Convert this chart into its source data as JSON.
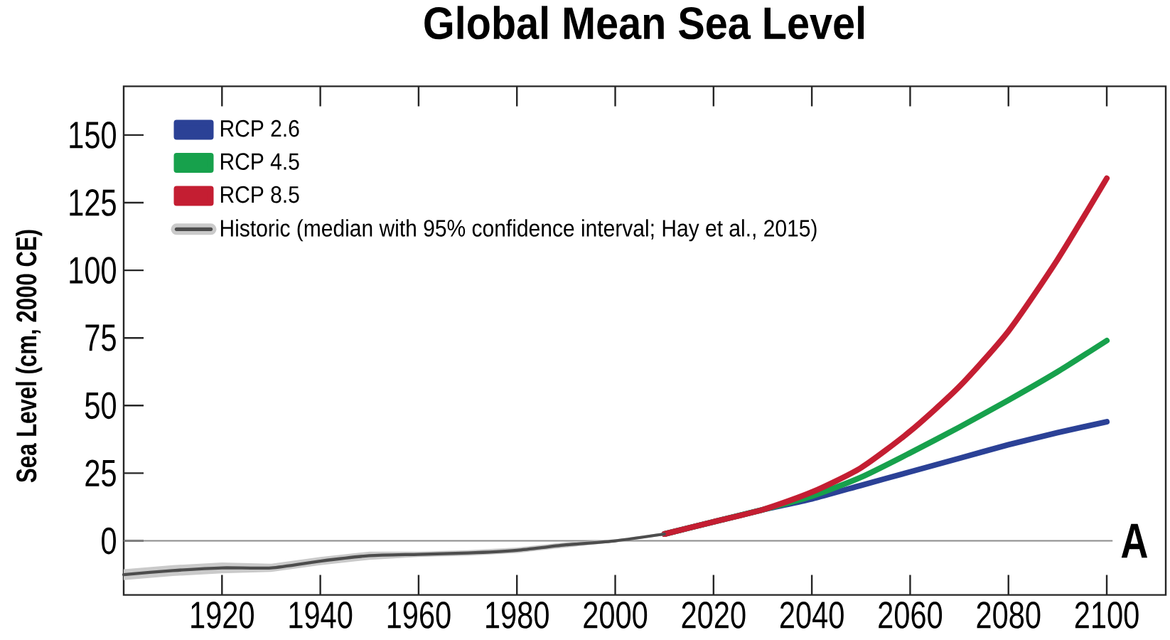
{
  "chart_data": {
    "type": "line",
    "title": "Global Mean Sea Level",
    "ylabel": "Sea Level (cm, 2000 CE)",
    "xlim": [
      1900,
      2112
    ],
    "xticks": [
      1920,
      1940,
      1960,
      1980,
      2000,
      2020,
      2040,
      2060,
      2080,
      2100
    ],
    "ylim": [
      -20,
      168
    ],
    "yticks": [
      0,
      25,
      50,
      75,
      100,
      125,
      150
    ],
    "legend": "top left",
    "ref_lines": [
      {
        "axis": "y",
        "value": 0,
        "color": "#8c8c8c"
      }
    ],
    "annotations": [
      "A"
    ],
    "series": [
      {
        "name": "RCP 2.6",
        "color": "#2b4196",
        "x": [
          2010,
          2020,
          2030,
          2040,
          2050,
          2060,
          2070,
          2080,
          2090,
          2100
        ],
        "values": [
          2.5,
          7,
          11.5,
          15.5,
          20.5,
          25.5,
          30.5,
          35.5,
          40,
          44
        ]
      },
      {
        "name": "RCP 4.5",
        "color": "#17a14c",
        "x": [
          2010,
          2020,
          2030,
          2040,
          2050,
          2060,
          2070,
          2080,
          2090,
          2100
        ],
        "values": [
          2.5,
          7,
          11.5,
          16.5,
          23.5,
          32.5,
          42,
          52,
          62.5,
          74
        ]
      },
      {
        "name": "RCP 8.5",
        "color": "#c41e32",
        "x": [
          2010,
          2020,
          2030,
          2040,
          2050,
          2060,
          2070,
          2080,
          2090,
          2100
        ],
        "values": [
          2.5,
          7,
          11.5,
          18,
          27,
          40.5,
          57,
          77.5,
          104,
          134
        ]
      },
      {
        "name": "Historic (median with 95% confidence interval; Hay et al., 2015)",
        "color": "#4d4d4d",
        "x": [
          1900,
          1910,
          1920,
          1930,
          1940,
          1950,
          1960,
          1970,
          1980,
          1990,
          2000,
          2010
        ],
        "values": [
          -12.5,
          -11,
          -10,
          -10,
          -7.5,
          -5.5,
          -5,
          -4.5,
          -3.5,
          -1.5,
          0,
          2.5
        ],
        "lower": [
          -14.5,
          -13,
          -12,
          -11.5,
          -9,
          -7,
          -6,
          -5.5,
          -4.5,
          -2.5,
          -0.5,
          2
        ],
        "upper": [
          -10.5,
          -9,
          -8,
          -8.5,
          -6,
          -4,
          -4,
          -3.5,
          -2.5,
          -0.5,
          0.5,
          3
        ]
      }
    ]
  }
}
